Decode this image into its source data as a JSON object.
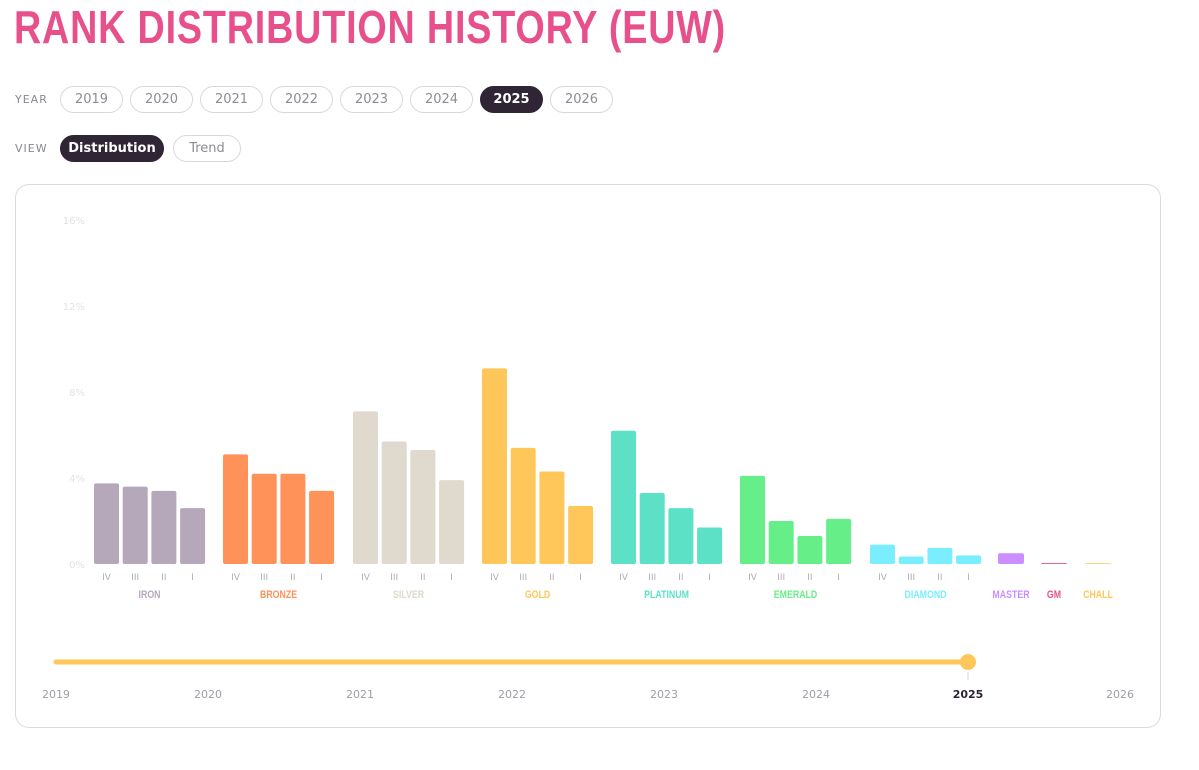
{
  "title": "RANK DISTRIBUTION HISTORY (EUW)",
  "filters": {
    "year_label": "YEAR",
    "years": [
      {
        "label": "2019",
        "active": false
      },
      {
        "label": "2020",
        "active": false
      },
      {
        "label": "2021",
        "active": false
      },
      {
        "label": "2022",
        "active": false
      },
      {
        "label": "2023",
        "active": false
      },
      {
        "label": "2024",
        "active": false
      },
      {
        "label": "2025",
        "active": true
      },
      {
        "label": "2026",
        "active": false
      }
    ],
    "view_label": "VIEW",
    "views": [
      {
        "label": "Distribution",
        "active": true
      },
      {
        "label": "Trend",
        "active": false
      }
    ]
  },
  "chart_data": {
    "type": "bar",
    "title": "",
    "xlabel": "",
    "ylabel": "",
    "ylim": [
      0,
      16
    ],
    "y_ticks": [
      "0%",
      "4%",
      "8%",
      "12%",
      "16%"
    ],
    "y_tick_values": [
      0,
      4,
      8,
      12,
      16
    ],
    "groups": [
      {
        "name": "IRON",
        "color": "#b6a8bb",
        "divisions": [
          "IV",
          "III",
          "II",
          "I"
        ],
        "values": [
          3.75,
          3.6,
          3.4,
          2.6
        ]
      },
      {
        "name": "BRONZE",
        "color": "#ff9259",
        "divisions": [
          "IV",
          "III",
          "II",
          "I"
        ],
        "values": [
          5.1,
          4.2,
          4.2,
          3.4
        ]
      },
      {
        "name": "SILVER",
        "color": "#e0d9cd",
        "divisions": [
          "IV",
          "III",
          "II",
          "I"
        ],
        "values": [
          7.1,
          5.7,
          5.3,
          3.9
        ]
      },
      {
        "name": "GOLD",
        "color": "#ffc759",
        "divisions": [
          "IV",
          "III",
          "II",
          "I"
        ],
        "values": [
          9.1,
          5.4,
          4.3,
          2.7
        ]
      },
      {
        "name": "PLATINUM",
        "color": "#5ce1c6",
        "divisions": [
          "IV",
          "III",
          "II",
          "I"
        ],
        "values": [
          6.2,
          3.3,
          2.6,
          1.7
        ]
      },
      {
        "name": "EMERALD",
        "color": "#66ee88",
        "divisions": [
          "IV",
          "III",
          "II",
          "I"
        ],
        "values": [
          4.1,
          2.0,
          1.3,
          2.1
        ]
      },
      {
        "name": "DIAMOND",
        "color": "#7aedff",
        "divisions": [
          "IV",
          "III",
          "II",
          "I"
        ],
        "values": [
          0.9,
          0.35,
          0.75,
          0.4
        ]
      },
      {
        "name": "MASTER",
        "color": "#cc8dff",
        "divisions": [
          ""
        ],
        "values": [
          0.5
        ]
      },
      {
        "name": "GM",
        "color": "#e8508b",
        "divisions": [
          ""
        ],
        "values": [
          0.04
        ]
      },
      {
        "name": "CHALL",
        "color": "#ffc759",
        "divisions": [
          ""
        ],
        "values": [
          0.01
        ]
      }
    ]
  },
  "timeline": {
    "years": [
      "2019",
      "2020",
      "2021",
      "2022",
      "2023",
      "2024",
      "2025",
      "2026"
    ],
    "selected": "2025",
    "color": "#ffc759"
  }
}
